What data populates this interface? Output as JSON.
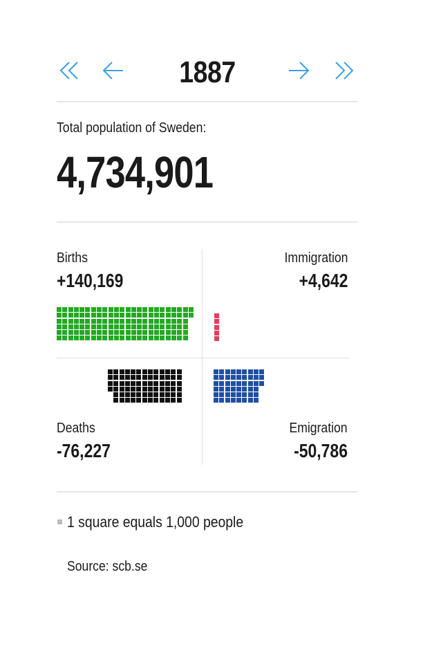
{
  "nav": {
    "first_icon": "double-chevron-left-icon",
    "prev_icon": "arrow-left-icon",
    "next_icon": "arrow-right-icon",
    "last_icon": "double-chevron-right-icon",
    "year": "1887",
    "accent_color": "#3aa0e0"
  },
  "population": {
    "label": "Total population of Sweden:",
    "value": "4,734,901"
  },
  "births": {
    "label": "Births",
    "value": "+140,169",
    "squares": 140,
    "color": "#22aa22"
  },
  "immigration": {
    "label": "Immigration",
    "value": "+4,642",
    "squares": 5,
    "color": "#e0405a"
  },
  "deaths": {
    "label": "Deaths",
    "value": "-76,227",
    "squares": 76,
    "color": "#111111"
  },
  "emigration": {
    "label": "Emigration",
    "value": "-50,786",
    "squares": 51,
    "color": "#1f4fa0"
  },
  "legend": {
    "text": "1 square equals 1,000 people"
  },
  "source": {
    "text": "Source: scb.se"
  },
  "chart_data": {
    "type": "waffle",
    "title": "Total population of Sweden: 4,734,901",
    "subtitle": "1887",
    "unit": "1 square equals 1,000 people",
    "categories": [
      "Births",
      "Immigration",
      "Deaths",
      "Emigration"
    ],
    "values": [
      140169,
      4642,
      -76227,
      -50786
    ],
    "squares": [
      140,
      5,
      76,
      51
    ],
    "colors": [
      "#22aa22",
      "#e0405a",
      "#111111",
      "#1f4fa0"
    ],
    "source": "scb.se"
  }
}
